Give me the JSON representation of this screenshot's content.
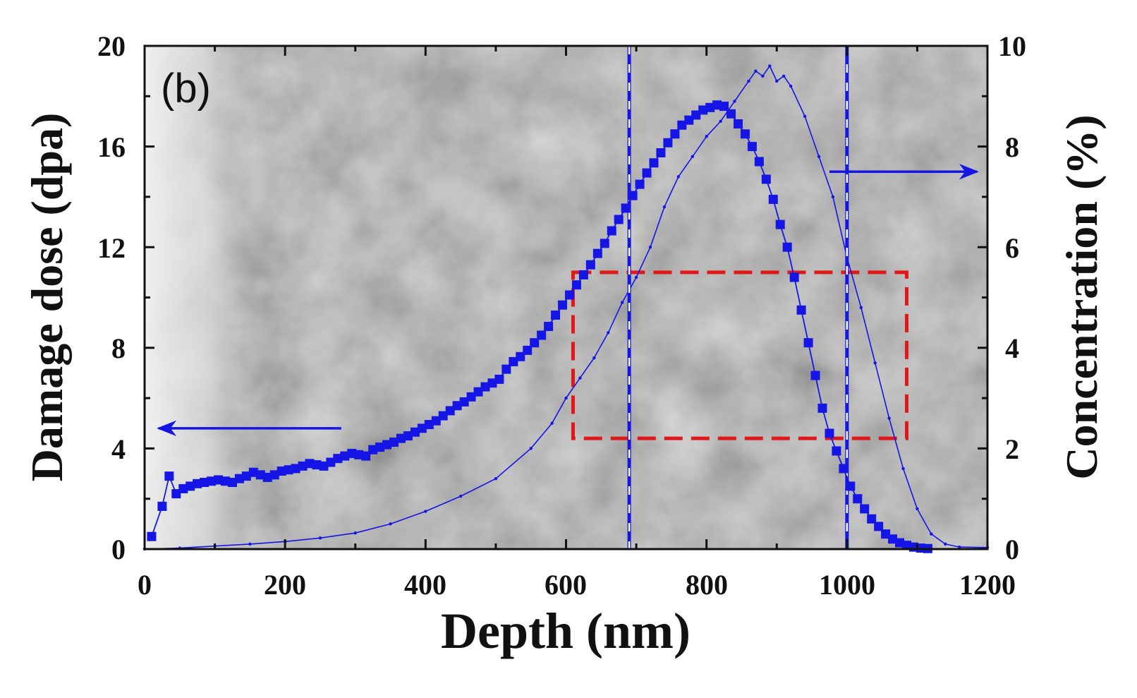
{
  "chart_data": {
    "type": "line",
    "panel_label": "(b)",
    "xlabel": "Depth (nm)",
    "ylabel_left": "Damage dose (dpa)",
    "ylabel_right": "Concentration (%)",
    "xlim": [
      0,
      1200
    ],
    "ylim_left": [
      0,
      20
    ],
    "ylim_right": [
      0,
      10
    ],
    "x_ticks": [
      "0",
      "200",
      "400",
      "600",
      "800",
      "1000",
      "1200"
    ],
    "y_left_ticks": [
      "0",
      "4",
      "8",
      "12",
      "16",
      "20"
    ],
    "y_right_ticks": [
      "0",
      "2",
      "4",
      "6",
      "8",
      "10"
    ],
    "background": "TEM micrograph (grayscale)",
    "series": [
      {
        "name": "Damage dose",
        "axis": "left",
        "marker": "square",
        "color": "#1515e6",
        "x": [
          10,
          25,
          35,
          45,
          55,
          65,
          75,
          85,
          95,
          105,
          115,
          125,
          135,
          145,
          155,
          165,
          175,
          185,
          195,
          205,
          215,
          225,
          235,
          245,
          255,
          265,
          275,
          285,
          295,
          305,
          315,
          325,
          335,
          345,
          355,
          365,
          375,
          385,
          395,
          405,
          415,
          425,
          435,
          445,
          455,
          465,
          475,
          485,
          495,
          505,
          515,
          525,
          535,
          545,
          555,
          565,
          575,
          585,
          595,
          605,
          615,
          625,
          635,
          645,
          655,
          665,
          675,
          685,
          695,
          705,
          715,
          725,
          735,
          745,
          755,
          765,
          775,
          785,
          795,
          805,
          815,
          825,
          835,
          845,
          855,
          865,
          875,
          885,
          895,
          905,
          915,
          925,
          935,
          945,
          955,
          965,
          975,
          985,
          995,
          1005,
          1015,
          1025,
          1035,
          1045,
          1055,
          1065,
          1075,
          1085,
          1095,
          1105,
          1115
        ],
        "y": [
          0.5,
          1.7,
          2.9,
          2.2,
          2.4,
          2.5,
          2.6,
          2.65,
          2.7,
          2.75,
          2.7,
          2.65,
          2.8,
          2.9,
          3.05,
          2.95,
          2.85,
          2.95,
          3.1,
          3.15,
          3.2,
          3.3,
          3.4,
          3.35,
          3.3,
          3.45,
          3.6,
          3.7,
          3.8,
          3.75,
          3.7,
          3.95,
          4.05,
          4.15,
          4.25,
          4.4,
          4.5,
          4.65,
          4.8,
          4.95,
          5.1,
          5.3,
          5.5,
          5.7,
          5.85,
          6.05,
          6.25,
          6.45,
          6.6,
          6.75,
          7.15,
          7.45,
          7.65,
          7.9,
          8.2,
          8.5,
          8.85,
          9.3,
          9.7,
          10.1,
          10.5,
          10.9,
          11.3,
          11.75,
          12.15,
          12.65,
          13.1,
          13.55,
          14.05,
          14.5,
          14.95,
          15.35,
          15.75,
          16.15,
          16.5,
          16.85,
          17.05,
          17.25,
          17.45,
          17.55,
          17.65,
          17.6,
          17.3,
          16.9,
          16.5,
          16.0,
          15.4,
          14.7,
          13.9,
          12.9,
          12.0,
          10.8,
          9.5,
          8.2,
          6.9,
          5.6,
          4.6,
          3.9,
          3.2,
          2.5,
          2.0,
          1.6,
          1.2,
          0.9,
          0.6,
          0.4,
          0.25,
          0.15,
          0.08,
          0.04,
          0.02
        ]
      },
      {
        "name": "Concentration",
        "axis": "right",
        "marker": "dot",
        "color": "#1515e6",
        "x": [
          0,
          50,
          100,
          150,
          200,
          250,
          300,
          350,
          400,
          450,
          500,
          550,
          580,
          600,
          620,
          640,
          660,
          680,
          700,
          720,
          740,
          760,
          780,
          800,
          820,
          840,
          860,
          870,
          880,
          890,
          900,
          910,
          920,
          940,
          960,
          980,
          1000,
          1020,
          1040,
          1060,
          1080,
          1100,
          1120,
          1140,
          1160,
          1200
        ],
        "y": [
          0,
          0.02,
          0.06,
          0.1,
          0.15,
          0.22,
          0.32,
          0.5,
          0.75,
          1.05,
          1.4,
          2.0,
          2.5,
          3.0,
          3.4,
          3.8,
          4.3,
          4.9,
          5.4,
          6.0,
          6.8,
          7.4,
          7.8,
          8.2,
          8.5,
          8.9,
          9.3,
          9.5,
          9.4,
          9.6,
          9.3,
          9.4,
          9.2,
          8.6,
          7.8,
          7.0,
          5.8,
          4.8,
          3.7,
          2.6,
          1.6,
          0.8,
          0.3,
          0.1,
          0.04,
          0.03
        ]
      }
    ],
    "annotations": {
      "vertical_lines_x": [
        690,
        1000
      ],
      "rectangle": {
        "x": [
          610,
          1085
        ],
        "y_left": [
          4.4,
          11.0
        ],
        "color": "#e01818"
      },
      "arrow_left": {
        "label": "points to left axis",
        "y_left": 4.8,
        "x_from": 280,
        "x_to": 20
      },
      "arrow_right": {
        "label": "points to right axis",
        "y_left": 15.0,
        "x_from": 975,
        "x_to": 1185
      }
    }
  }
}
